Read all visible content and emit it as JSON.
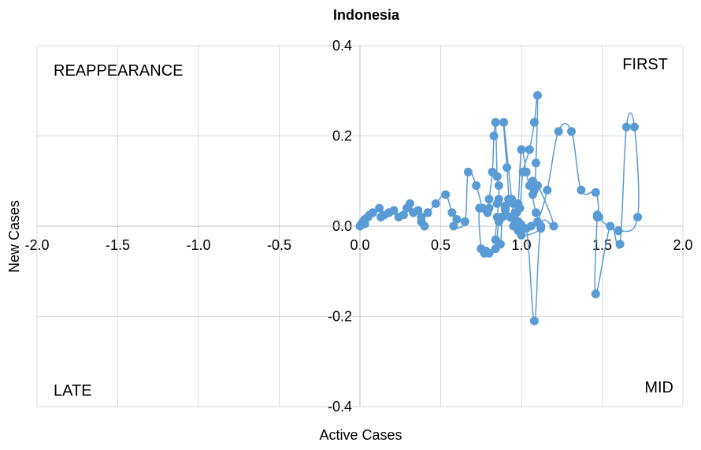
{
  "chart_data": {
    "type": "scatter",
    "title": "Indonesia",
    "xlabel": "Active Cases",
    "ylabel": "New Cases",
    "xlim": [
      -2.0,
      2.0
    ],
    "ylim": [
      -0.4,
      0.4
    ],
    "x_ticks": [
      "-2.0",
      "-1.5",
      "-1.0",
      "-0.5",
      "0.0",
      "0.5",
      "1.0",
      "1.5",
      "2.0"
    ],
    "y_ticks": [
      "0.4",
      "0.2",
      "0.0",
      "-0.2",
      "-0.4"
    ],
    "grid": true,
    "legend": false,
    "quadrant_labels": {
      "top_left": "REAPPEARANCE",
      "top_right": "FIRST",
      "bottom_left": "LATE",
      "bottom_right": "MID"
    },
    "series": [
      {
        "color": "#5B9BD5",
        "smooth": true,
        "x": [
          0.0,
          0.01,
          0.02,
          0.03,
          0.05,
          0.03,
          0.06,
          0.08,
          0.12,
          0.13,
          0.15,
          0.18,
          0.21,
          0.24,
          0.27,
          0.29,
          0.31,
          0.33,
          0.36,
          0.38,
          0.4,
          0.38,
          0.42,
          0.47,
          0.53,
          0.57,
          0.6,
          0.58,
          0.65,
          0.67,
          0.72,
          0.76,
          0.79,
          0.8,
          0.82,
          0.83,
          0.84,
          0.85,
          0.86,
          0.86,
          0.85,
          0.84,
          0.87,
          0.88,
          0.9,
          0.92,
          0.91,
          0.89,
          0.94,
          0.96,
          0.98,
          1.0,
          1.03,
          1.05,
          1.07,
          1.08,
          1.09,
          1.1,
          1.08,
          1.05,
          1.01,
          0.99,
          0.96,
          0.94,
          0.95,
          1.03,
          1.08,
          1.12,
          1.2,
          1.1,
          1.07,
          1.09,
          1.12,
          1.0,
          0.98,
          0.97,
          0.95,
          0.9,
          0.88,
          0.86,
          0.84,
          0.8,
          0.78,
          0.77,
          0.75,
          0.74,
          0.8,
          0.85,
          0.9,
          0.93,
          0.96,
          0.99,
          1.0,
          0.98,
          1.02,
          1.06,
          1.1,
          1.16,
          1.23,
          1.31,
          1.37,
          1.46,
          1.48,
          1.47,
          1.46,
          1.55,
          1.61,
          1.65,
          1.7,
          1.72,
          1.6,
          1.47
        ],
        "y": [
          0.0,
          0.005,
          0.01,
          0.015,
          0.02,
          0.005,
          0.025,
          0.03,
          0.04,
          0.02,
          0.025,
          0.03,
          0.035,
          0.02,
          0.025,
          0.04,
          0.05,
          0.03,
          0.035,
          0.01,
          0.0,
          0.02,
          0.03,
          0.05,
          0.07,
          0.03,
          0.015,
          0.0,
          0.01,
          0.12,
          0.09,
          0.04,
          0.03,
          0.06,
          0.12,
          0.2,
          0.23,
          0.11,
          0.09,
          0.06,
          0.02,
          -0.03,
          -0.04,
          0.02,
          0.04,
          0.06,
          0.13,
          0.23,
          0.06,
          0.01,
          0.05,
          0.17,
          0.12,
          0.09,
          0.1,
          0.08,
          0.14,
          0.29,
          0.23,
          0.17,
          0.12,
          0.04,
          0.03,
          0.02,
          0.0,
          -0.005,
          -0.21,
          0.0,
          0.0,
          0.09,
          0.07,
          0.03,
          -0.005,
          -0.02,
          0.01,
          0.03,
          0.05,
          0.035,
          0.02,
          0.01,
          -0.05,
          -0.06,
          -0.055,
          -0.06,
          -0.05,
          0.04,
          0.04,
          0.05,
          0.045,
          0.02,
          0.01,
          0.005,
          0.0,
          -0.01,
          -0.005,
          0.0,
          0.01,
          0.08,
          0.21,
          0.21,
          0.08,
          0.075,
          0.02,
          0.025,
          -0.15,
          0.0,
          -0.04,
          0.22,
          0.22,
          0.02,
          -0.01,
          0.02
        ]
      }
    ]
  }
}
